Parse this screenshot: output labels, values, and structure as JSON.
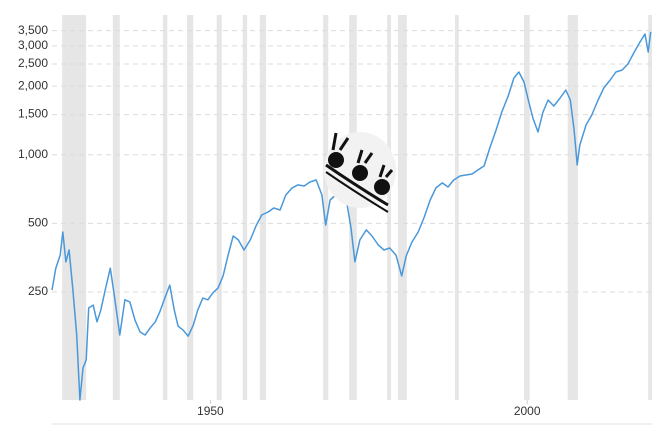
{
  "chart_data": {
    "type": "line",
    "log_y": true,
    "grid": true,
    "xlim": [
      1925,
      2019.7
    ],
    "ylim": [
      84,
      4100
    ],
    "xticks": [
      1950,
      2000
    ],
    "yticks": [
      250,
      500,
      {
        "value": 1000,
        "label": "1,000"
      },
      {
        "value": 1500,
        "label": "1,500"
      },
      {
        "value": 2000,
        "label": "2,000"
      },
      {
        "value": 2500,
        "label": "2,500"
      },
      {
        "value": 3000,
        "label": "3,000"
      },
      {
        "value": 3500,
        "label": "3,500"
      }
    ],
    "shade_color": "#e6e6e6",
    "shaded_ranges": [
      [
        1926.6,
        1930.4
      ],
      [
        1934.6,
        1935.7
      ],
      [
        1942.5,
        1943.2
      ],
      [
        1946.3,
        1947.3
      ],
      [
        1951.0,
        1951.8
      ],
      [
        1955.1,
        1955.8
      ],
      [
        1957.8,
        1958.8
      ],
      [
        1967.8,
        1968.6
      ],
      [
        1971.9,
        1973.1
      ],
      [
        1977.9,
        1978.5
      ],
      [
        1979.6,
        1981.0
      ],
      [
        1988.6,
        1989.2
      ],
      [
        1999.5,
        2000.4
      ],
      [
        2006.4,
        2008.0
      ],
      [
        2019.1,
        2019.7
      ]
    ],
    "series": [
      {
        "color": "#4a98d9",
        "x": [
          1925.0,
          1925.6,
          1926.3,
          1926.7,
          1927.2,
          1927.7,
          1928.3,
          1928.9,
          1929.4,
          1929.9,
          1930.4,
          1930.8,
          1931.5,
          1932.1,
          1932.7,
          1933.4,
          1934.2,
          1934.9,
          1935.7,
          1936.5,
          1937.3,
          1938.1,
          1938.9,
          1939.7,
          1940.5,
          1941.3,
          1942.0,
          1942.8,
          1943.6,
          1944.3,
          1944.9,
          1945.7,
          1946.5,
          1947.3,
          1948.0,
          1948.8,
          1949.6,
          1950.4,
          1951.2,
          1952.0,
          1952.8,
          1953.6,
          1954.4,
          1955.3,
          1956.3,
          1957.2,
          1958.1,
          1959.1,
          1960.0,
          1961.0,
          1961.9,
          1962.9,
          1963.8,
          1964.8,
          1965.7,
          1966.7,
          1967.6,
          1968.2,
          1968.9,
          1969.8,
          1970.8,
          1971.6,
          1972.2,
          1972.8,
          1973.6,
          1974.6,
          1975.5,
          1976.5,
          1977.4,
          1978.3,
          1979.3,
          1980.2,
          1980.9,
          1981.8,
          1982.8,
          1983.7,
          1984.7,
          1985.6,
          1986.6,
          1987.5,
          1988.4,
          1989.4,
          1990.3,
          1991.3,
          1992.2,
          1993.2,
          1994.1,
          1995.1,
          1996.0,
          1997.0,
          1997.9,
          1998.7,
          1999.5,
          2000.1,
          2000.9,
          2001.7,
          2002.5,
          2003.3,
          2004.2,
          2005.2,
          2006.1,
          2006.8,
          2007.4,
          2007.9,
          2008.3,
          2009.3,
          2010.2,
          2011.2,
          2012.1,
          2013.1,
          2014.0,
          2015.0,
          2015.9,
          2016.9,
          2017.8,
          2018.6,
          2019.1,
          2019.5
        ],
        "values": [
          255,
          318,
          363,
          458,
          339,
          382,
          255,
          162,
          84,
          116,
          126,
          213,
          219,
          185,
          208,
          255,
          318,
          235,
          162,
          231,
          226,
          188,
          167,
          162,
          174,
          185,
          204,
          235,
          268,
          208,
          177,
          170,
          160,
          179,
          208,
          235,
          231,
          248,
          260,
          294,
          363,
          440,
          423,
          382,
          423,
          487,
          544,
          561,
          584,
          572,
          666,
          715,
          737,
          729,
          759,
          775,
          666,
          492,
          633,
          666,
          700,
          602,
          477,
          339,
          423,
          468,
          440,
          402,
          382,
          390,
          363,
          294,
          360,
          414,
          458,
          528,
          633,
          715,
          752,
          722,
          775,
          807,
          815,
          823,
          857,
          892,
          1070,
          1284,
          1540,
          1810,
          2170,
          2305,
          2085,
          1773,
          1449,
          1258,
          1540,
          1738,
          1635,
          1773,
          1923,
          1738,
          1284,
          902,
          1103,
          1351,
          1494,
          1738,
          1962,
          2127,
          2305,
          2353,
          2500,
          2822,
          3122,
          3385,
          2822,
          3455
        ]
      }
    ]
  }
}
